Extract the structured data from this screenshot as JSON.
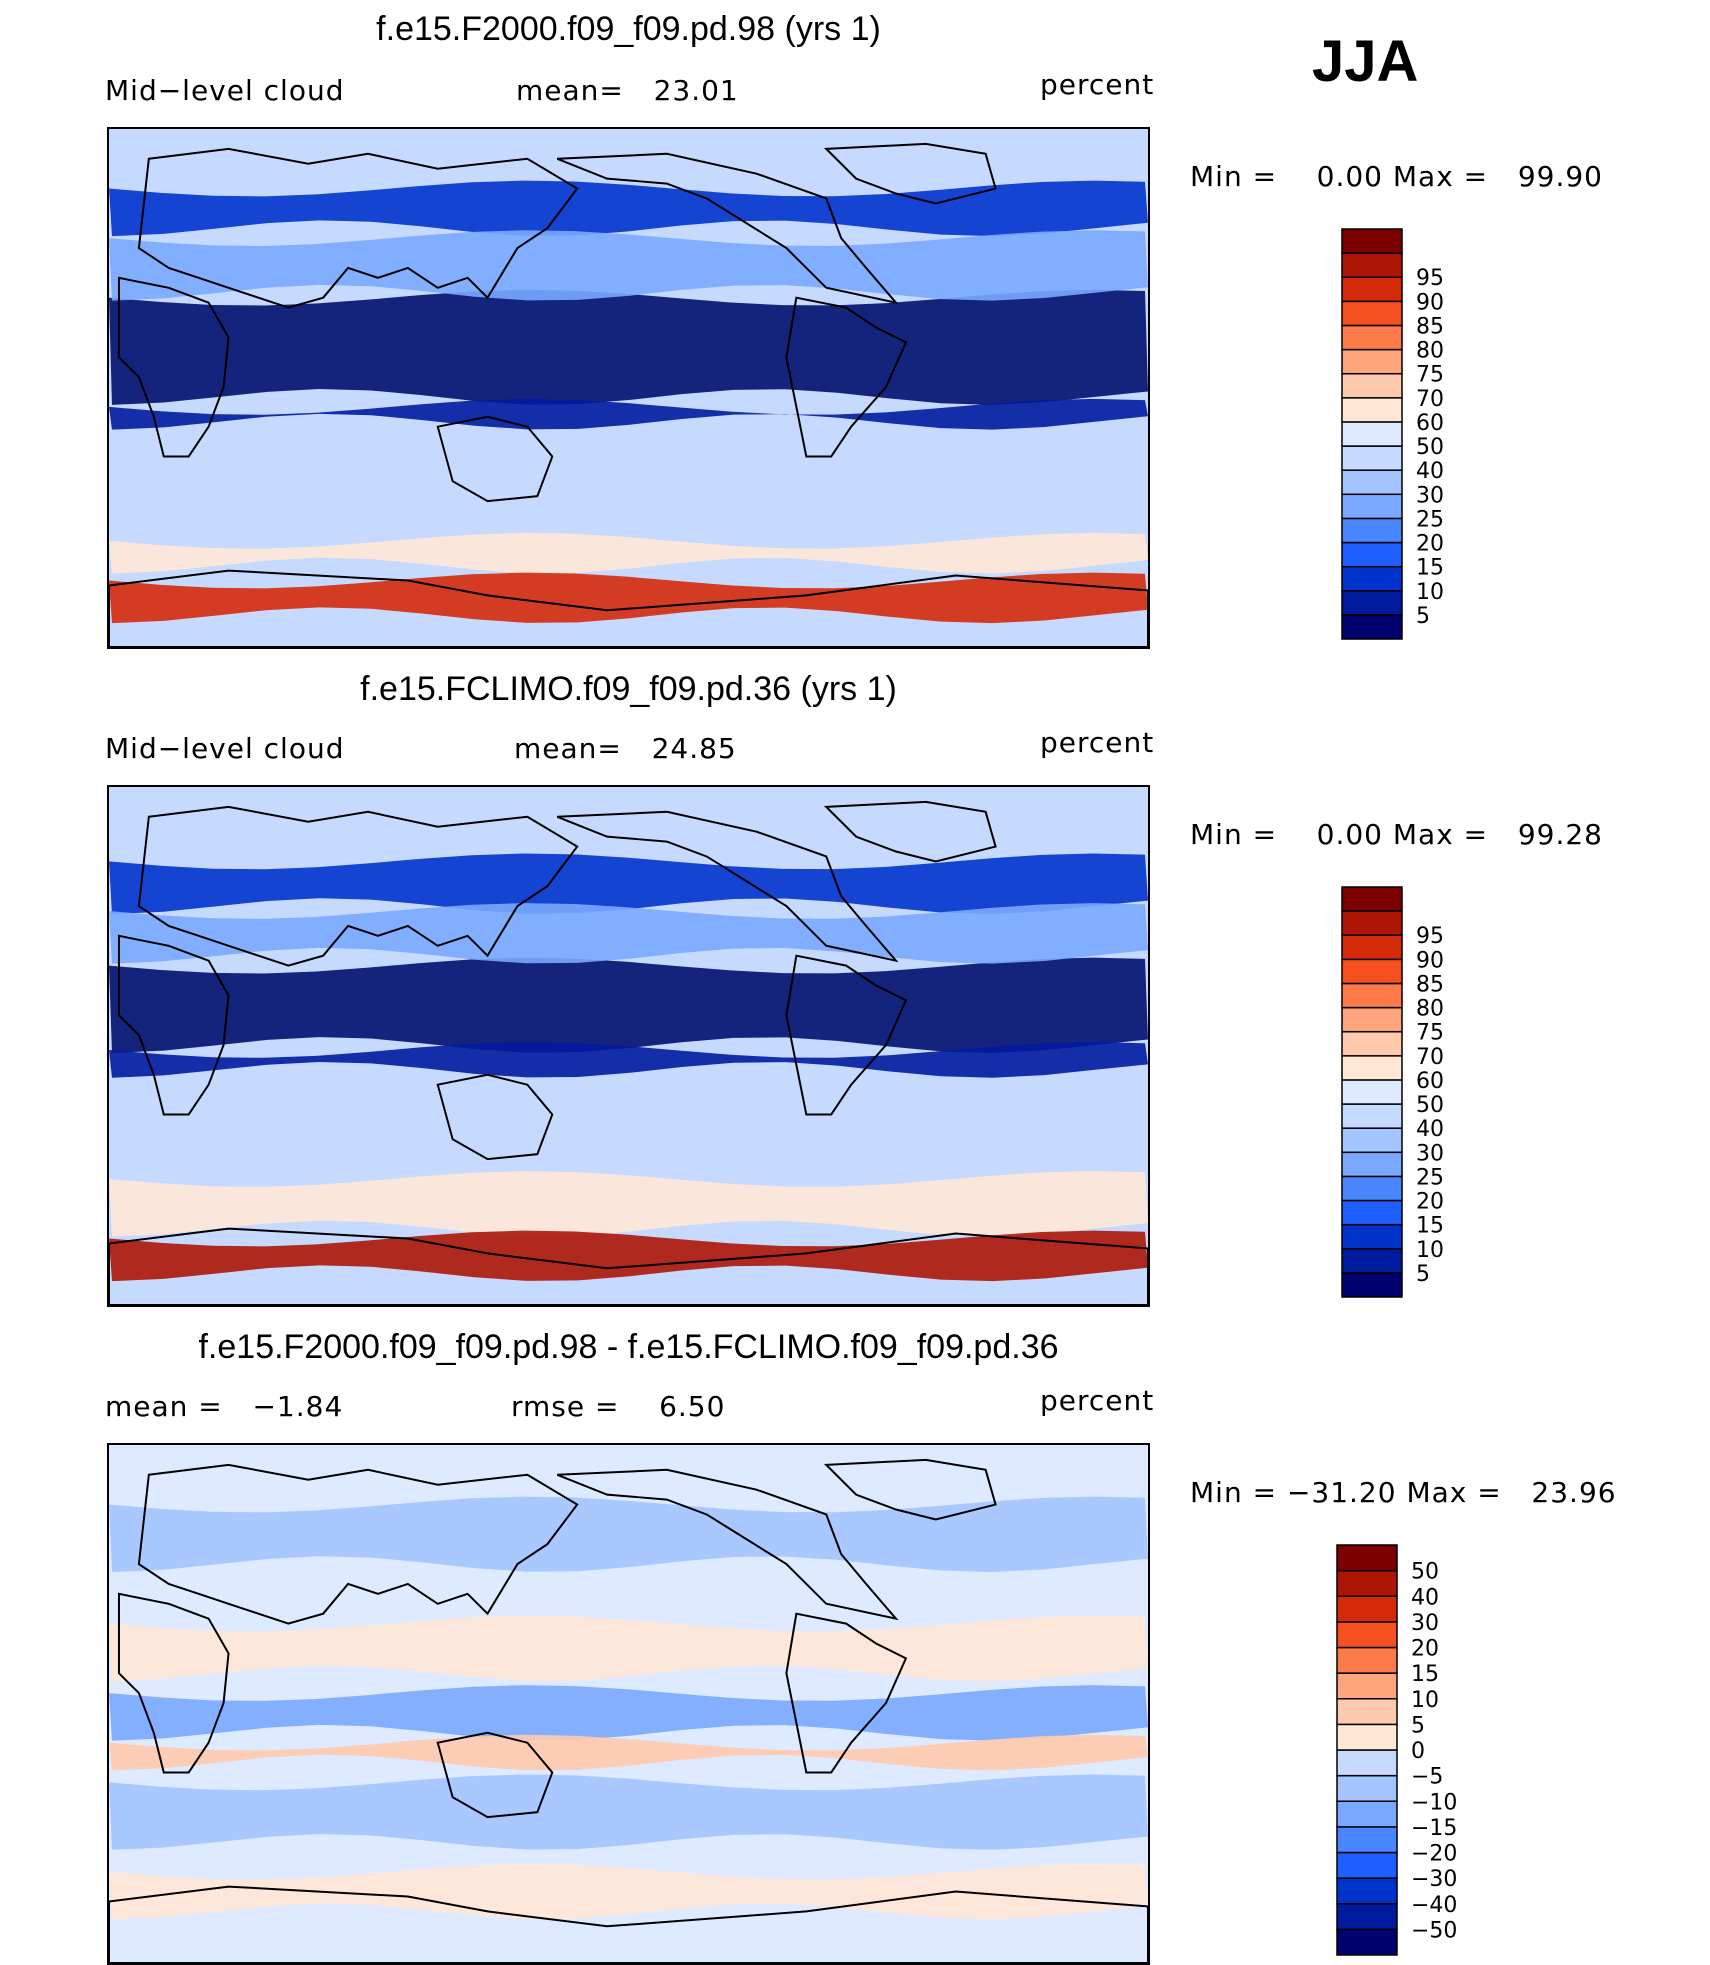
{
  "season": "JJA",
  "panels": [
    {
      "title": "f.e15.F2000.f09_f09.pd.98 (yrs 1)",
      "left_label": "Mid−level cloud",
      "center_label": "mean=   23.01",
      "right_label": "percent",
      "minmax": "Min =    0.00 Max =   99.90",
      "colorbar": {
        "colors": [
          "#00006f",
          "#001a9e",
          "#0033cc",
          "#1f5fff",
          "#4a86ff",
          "#7aa8ff",
          "#a3c4ff",
          "#c6daff",
          "#deeaff",
          "#ffe7d6",
          "#ffc9ad",
          "#ffa57d",
          "#ff7a4a",
          "#f5501e",
          "#d42a0a",
          "#ad1505",
          "#7d0000"
        ],
        "labels": [
          "5",
          "10",
          "15",
          "20",
          "25",
          "30",
          "40",
          "50",
          "60",
          "70",
          "75",
          "80",
          "85",
          "90",
          "95"
        ]
      }
    },
    {
      "title": "f.e15.FCLIMO.f09_f09.pd.36 (yrs 1)",
      "left_label": "Mid−level cloud",
      "center_label": "mean=   24.85",
      "right_label": "percent",
      "minmax": "Min =    0.00 Max =   99.28",
      "colorbar": {
        "colors": [
          "#00006f",
          "#001a9e",
          "#0033cc",
          "#1f5fff",
          "#4a86ff",
          "#7aa8ff",
          "#a3c4ff",
          "#c6daff",
          "#deeaff",
          "#ffe7d6",
          "#ffc9ad",
          "#ffa57d",
          "#ff7a4a",
          "#f5501e",
          "#d42a0a",
          "#ad1505",
          "#7d0000"
        ],
        "labels": [
          "5",
          "10",
          "15",
          "20",
          "25",
          "30",
          "40",
          "50",
          "60",
          "70",
          "75",
          "80",
          "85",
          "90",
          "95"
        ]
      }
    },
    {
      "title": "f.e15.F2000.f09_f09.pd.98 - f.e15.FCLIMO.f09_f09.pd.36",
      "left_label": "mean =   −1.84",
      "center_label": "rmse =    6.50",
      "right_label": "percent",
      "minmax": "Min = −31.20 Max =   23.96",
      "colorbar": {
        "colors": [
          "#00006f",
          "#001a9e",
          "#0033cc",
          "#1f5fff",
          "#4a86ff",
          "#7aa8ff",
          "#a3c4ff",
          "#c6daff",
          "#ffe7d6",
          "#ffc9ad",
          "#ffa57d",
          "#ff7a4a",
          "#f5501e",
          "#d42a0a",
          "#ad1505",
          "#7d0000"
        ],
        "labels": [
          "−50",
          "−40",
          "−30",
          "−20",
          "−15",
          "−10",
          "−5",
          "0",
          "5",
          "10",
          "15",
          "20",
          "30",
          "40",
          "50"
        ]
      }
    }
  ],
  "chart_data": [
    {
      "type": "heatmap",
      "title": "f.e15.F2000.f09_f09.pd.98 (yrs 1)",
      "variable": "Mid−level cloud",
      "units": "percent",
      "mean": 23.01,
      "min": 0.0,
      "max": 99.9,
      "levels": [
        5,
        10,
        15,
        20,
        25,
        30,
        40,
        50,
        60,
        70,
        75,
        80,
        85,
        90,
        95
      ],
      "season": "JJA"
    },
    {
      "type": "heatmap",
      "title": "f.e15.FCLIMO.f09_f09.pd.36 (yrs 1)",
      "variable": "Mid−level cloud",
      "units": "percent",
      "mean": 24.85,
      "min": 0.0,
      "max": 99.28,
      "levels": [
        5,
        10,
        15,
        20,
        25,
        30,
        40,
        50,
        60,
        70,
        75,
        80,
        85,
        90,
        95
      ],
      "season": "JJA"
    },
    {
      "type": "heatmap",
      "title": "f.e15.F2000.f09_f09.pd.98 - f.e15.FCLIMO.f09_f09.pd.36",
      "units": "percent",
      "mean": -1.84,
      "rmse": 6.5,
      "min": -31.2,
      "max": 23.96,
      "levels": [
        -50,
        -40,
        -30,
        -20,
        -15,
        -10,
        -5,
        0,
        5,
        10,
        15,
        20,
        30,
        40,
        50
      ],
      "season": "JJA"
    }
  ]
}
